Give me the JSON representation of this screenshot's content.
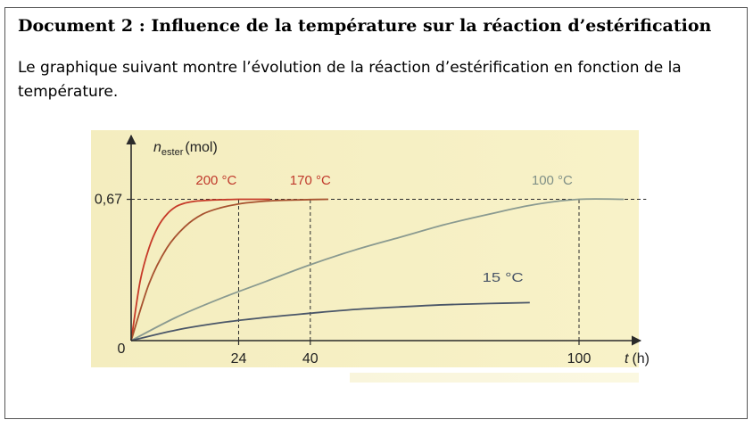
{
  "document": {
    "title": "Document 2 : Influence de la température sur la réaction d’estérification",
    "description": "Le graphique suivant montre l’évolution de la réaction d’estérification en fonction de la température."
  },
  "colors": {
    "paper": "#f4edbf",
    "paper_edge": "#f8f2c8",
    "axis": "#2b2b2b",
    "curve_200": "#c63a28",
    "curve_170": "#a7522f",
    "curve_100": "#8a9a90",
    "curve_15": "#4a5668",
    "label_hot": "#c0392b",
    "label_cool": "#7f8f86",
    "label_cold": "#4a5668"
  },
  "chart_data": {
    "type": "line",
    "ylabel": {
      "symbol": "n",
      "subscript": "ester",
      "unit": "(mol)"
    },
    "xlabel": {
      "symbol": "t",
      "unit": "(h)"
    },
    "origin_label": "0",
    "xlim": [
      0,
      115
    ],
    "ylim": [
      0,
      0.88
    ],
    "x_ticks": [
      {
        "value": 24,
        "label": "24"
      },
      {
        "value": 40,
        "label": "40"
      },
      {
        "value": 100,
        "label": "100"
      }
    ],
    "y_ticks": [
      {
        "value": 0.67,
        "label": "0,67"
      }
    ],
    "reference_lines": [
      {
        "axis": "y",
        "value": 0.67
      },
      {
        "axis": "x",
        "value": 24
      },
      {
        "axis": "x",
        "value": 40
      },
      {
        "axis": "x",
        "value": 100
      }
    ],
    "series": [
      {
        "name": "200 °C",
        "color": "curve_200",
        "label_color": "label_hot",
        "label_at": [
          19,
          0.74
        ],
        "x": [
          0,
          2,
          4,
          6,
          8,
          10,
          12,
          14,
          16,
          18,
          20,
          24,
          28,
          31
        ],
        "y": [
          0,
          0.28,
          0.44,
          0.54,
          0.6,
          0.635,
          0.652,
          0.66,
          0.664,
          0.667,
          0.668,
          0.67,
          0.67,
          0.67
        ]
      },
      {
        "name": "170 °C",
        "color": "curve_170",
        "label_color": "label_hot",
        "label_at": [
          40,
          0.74
        ],
        "x": [
          0,
          4,
          8,
          12,
          16,
          20,
          24,
          28,
          32,
          36,
          40,
          44
        ],
        "y": [
          0,
          0.27,
          0.44,
          0.54,
          0.6,
          0.63,
          0.648,
          0.658,
          0.664,
          0.667,
          0.669,
          0.67
        ]
      },
      {
        "name": "100 °C",
        "color": "curve_100",
        "label_color": "label_cool",
        "label_at": [
          94,
          0.74
        ],
        "x": [
          0,
          10,
          20,
          30,
          40,
          50,
          60,
          70,
          80,
          90,
          100,
          110
        ],
        "y": [
          0,
          0.11,
          0.2,
          0.28,
          0.36,
          0.43,
          0.49,
          0.55,
          0.6,
          0.645,
          0.67,
          0.67
        ]
      },
      {
        "name": "15 °C",
        "color": "curve_15",
        "label_color": "label_cold",
        "label_at": [
          83,
          0.28
        ],
        "x": [
          0,
          10,
          20,
          30,
          40,
          50,
          60,
          70,
          80,
          89
        ],
        "y": [
          0,
          0.05,
          0.085,
          0.11,
          0.13,
          0.148,
          0.16,
          0.17,
          0.176,
          0.18
        ]
      }
    ]
  }
}
